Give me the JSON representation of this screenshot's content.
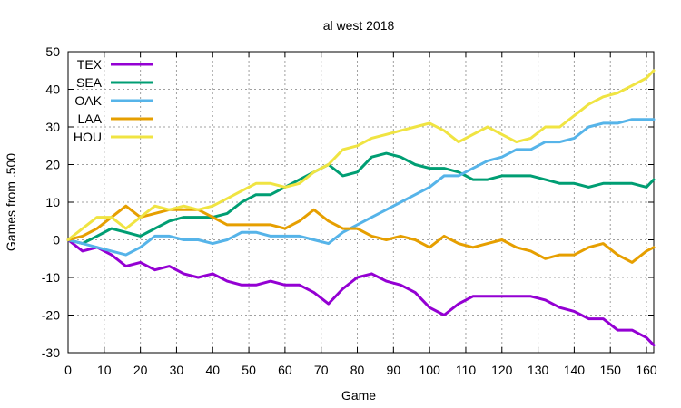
{
  "chart_data": {
    "type": "line",
    "title": "al west 2018",
    "xlabel": "Game",
    "ylabel": "Games from .500",
    "xlim": [
      0,
      162
    ],
    "ylim": [
      -30,
      50
    ],
    "xticks": [
      0,
      10,
      20,
      30,
      40,
      50,
      60,
      70,
      80,
      90,
      100,
      110,
      120,
      130,
      140,
      150,
      160
    ],
    "yticks": [
      -30,
      -20,
      -10,
      0,
      10,
      20,
      30,
      40,
      50
    ],
    "grid": true,
    "legend": "top-left",
    "series": [
      {
        "name": "TEX",
        "color": "#9400d3",
        "x": [
          0,
          4,
          8,
          12,
          16,
          20,
          24,
          28,
          32,
          36,
          40,
          44,
          48,
          52,
          56,
          60,
          64,
          68,
          72,
          76,
          80,
          84,
          88,
          92,
          96,
          100,
          104,
          108,
          112,
          116,
          120,
          124,
          128,
          132,
          136,
          140,
          144,
          148,
          152,
          156,
          160,
          162
        ],
        "y": [
          0,
          -3,
          -2,
          -4,
          -7,
          -6,
          -8,
          -7,
          -9,
          -10,
          -9,
          -11,
          -12,
          -12,
          -11,
          -12,
          -12,
          -14,
          -17,
          -13,
          -10,
          -9,
          -11,
          -12,
          -14,
          -18,
          -20,
          -17,
          -15,
          -15,
          -15,
          -15,
          -15,
          -16,
          -18,
          -19,
          -21,
          -21,
          -24,
          -24,
          -26,
          -28
        ]
      },
      {
        "name": "SEA",
        "color": "#009e73",
        "x": [
          0,
          4,
          8,
          12,
          16,
          20,
          24,
          28,
          32,
          36,
          40,
          44,
          48,
          52,
          56,
          60,
          64,
          68,
          72,
          76,
          80,
          84,
          88,
          92,
          96,
          100,
          104,
          108,
          112,
          116,
          120,
          124,
          128,
          132,
          136,
          140,
          144,
          148,
          152,
          156,
          160,
          162
        ],
        "y": [
          0,
          -1,
          1,
          3,
          2,
          1,
          3,
          5,
          6,
          6,
          6,
          7,
          10,
          12,
          12,
          14,
          16,
          18,
          20,
          17,
          18,
          22,
          23,
          22,
          20,
          19,
          19,
          18,
          16,
          16,
          17,
          17,
          17,
          16,
          15,
          15,
          14,
          15,
          15,
          15,
          14,
          16
        ]
      },
      {
        "name": "OAK",
        "color": "#56b4e9",
        "x": [
          0,
          4,
          8,
          12,
          16,
          20,
          24,
          28,
          32,
          36,
          40,
          44,
          48,
          52,
          56,
          60,
          64,
          68,
          72,
          76,
          80,
          84,
          88,
          92,
          96,
          100,
          104,
          108,
          112,
          116,
          120,
          124,
          128,
          132,
          136,
          140,
          144,
          148,
          152,
          156,
          160,
          162
        ],
        "y": [
          0,
          -1,
          -2,
          -3,
          -4,
          -2,
          1,
          1,
          0,
          0,
          -1,
          0,
          2,
          2,
          1,
          1,
          1,
          0,
          -1,
          2,
          4,
          6,
          8,
          10,
          12,
          14,
          17,
          17,
          19,
          21,
          22,
          24,
          24,
          26,
          26,
          27,
          30,
          31,
          31,
          32,
          32,
          32
        ]
      },
      {
        "name": "LAA",
        "color": "#e69f00",
        "x": [
          0,
          4,
          8,
          12,
          16,
          20,
          24,
          28,
          32,
          36,
          40,
          44,
          48,
          52,
          56,
          60,
          64,
          68,
          72,
          76,
          80,
          84,
          88,
          92,
          96,
          100,
          104,
          108,
          112,
          116,
          120,
          124,
          128,
          132,
          136,
          140,
          144,
          148,
          152,
          156,
          160,
          162
        ],
        "y": [
          0,
          1,
          3,
          6,
          9,
          6,
          7,
          8,
          8,
          8,
          6,
          4,
          4,
          4,
          4,
          3,
          5,
          8,
          5,
          3,
          3,
          1,
          0,
          1,
          0,
          -2,
          1,
          -1,
          -2,
          -1,
          0,
          -2,
          -3,
          -5,
          -4,
          -4,
          -2,
          -1,
          -4,
          -6,
          -3,
          -2
        ]
      },
      {
        "name": "HOU",
        "color": "#f0e442",
        "x": [
          0,
          4,
          8,
          12,
          16,
          20,
          24,
          28,
          32,
          36,
          40,
          44,
          48,
          52,
          56,
          60,
          64,
          68,
          72,
          76,
          80,
          84,
          88,
          92,
          96,
          100,
          104,
          108,
          112,
          116,
          120,
          124,
          128,
          132,
          136,
          140,
          144,
          148,
          152,
          156,
          160,
          162
        ],
        "y": [
          0,
          3,
          6,
          6,
          3,
          6,
          9,
          8,
          9,
          8,
          9,
          11,
          13,
          15,
          15,
          14,
          15,
          18,
          20,
          24,
          25,
          27,
          28,
          29,
          30,
          31,
          29,
          26,
          28,
          30,
          28,
          26,
          27,
          30,
          30,
          33,
          36,
          38,
          39,
          41,
          43,
          45
        ]
      }
    ]
  }
}
